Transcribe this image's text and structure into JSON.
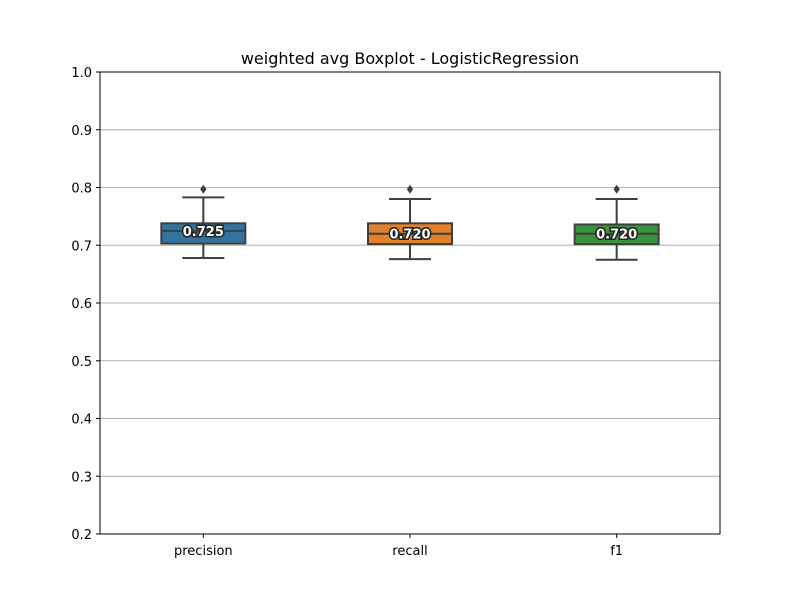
{
  "chart_data": {
    "type": "boxplot",
    "title": "weighted avg Boxplot - LogisticRegression",
    "xlabel": "",
    "ylabel": "",
    "ylim": [
      0.2,
      1.0
    ],
    "yticks": [
      0.2,
      0.3,
      0.4,
      0.5,
      0.6,
      0.7,
      0.8,
      0.9,
      1.0
    ],
    "ytick_labels": [
      "0.2",
      "0.3",
      "0.4",
      "0.5",
      "0.6",
      "0.7",
      "0.8",
      "0.9",
      "1.0"
    ],
    "grid": "horizontal",
    "categories": [
      "precision",
      "recall",
      "f1"
    ],
    "boxes": [
      {
        "category": "precision",
        "color": "#3274a1",
        "whisker_low": 0.678,
        "q1": 0.703,
        "median": 0.725,
        "q3": 0.738,
        "whisker_high": 0.783,
        "outliers": [
          0.797
        ],
        "label": "0.725"
      },
      {
        "category": "recall",
        "color": "#e1812c",
        "whisker_low": 0.676,
        "q1": 0.702,
        "median": 0.72,
        "q3": 0.738,
        "whisker_high": 0.78,
        "outliers": [
          0.797
        ],
        "label": "0.720"
      },
      {
        "category": "f1",
        "color": "#3a923a",
        "whisker_low": 0.675,
        "q1": 0.702,
        "median": 0.72,
        "q3": 0.736,
        "whisker_high": 0.78,
        "outliers": [
          0.797
        ],
        "label": "0.720"
      }
    ],
    "edge_color": "#3f3f3f",
    "grid_color": "#b0b0b0"
  }
}
